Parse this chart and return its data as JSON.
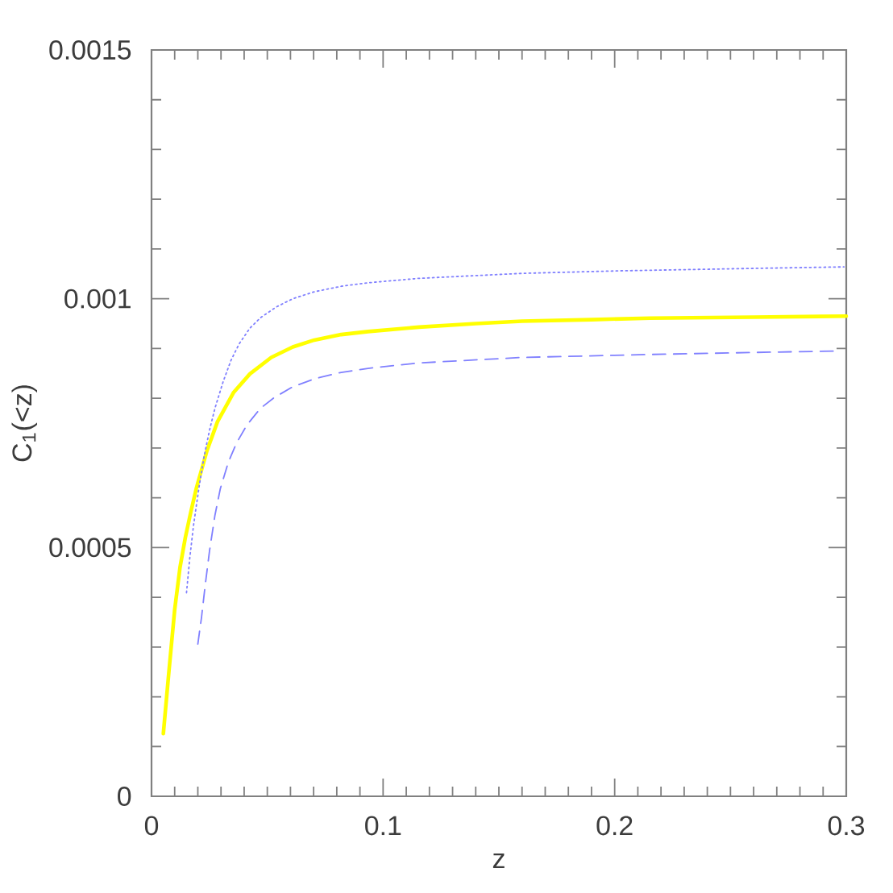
{
  "chart_data": {
    "type": "line",
    "xlabel": "z",
    "ylabel": "C$_{1}$(<z)",
    "xlim": [
      0,
      0.3
    ],
    "ylim": [
      0,
      0.0015
    ],
    "xticks": [
      0,
      {
        "value": 0.01,
        "label": null
      },
      {
        "value": 0.02,
        "label": null
      },
      {
        "value": 0.03,
        "label": null
      },
      {
        "value": 0.04,
        "label": null
      },
      {
        "value": 0.05,
        "label": null
      },
      {
        "value": 0.06,
        "label": null
      },
      {
        "value": 0.07,
        "label": null
      },
      {
        "value": 0.08,
        "label": null
      },
      {
        "value": 0.09,
        "label": null
      },
      0.1,
      {
        "value": 0.11,
        "label": null
      },
      {
        "value": 0.12,
        "label": null
      },
      {
        "value": 0.13,
        "label": null
      },
      {
        "value": 0.14,
        "label": null
      },
      {
        "value": 0.15,
        "label": null
      },
      {
        "value": 0.16,
        "label": null
      },
      {
        "value": 0.17,
        "label": null
      },
      {
        "value": 0.18,
        "label": null
      },
      {
        "value": 0.19,
        "label": null
      },
      0.2,
      {
        "value": 0.21,
        "label": null
      },
      {
        "value": 0.22,
        "label": null
      },
      {
        "value": 0.23,
        "label": null
      },
      {
        "value": 0.24,
        "label": null
      },
      {
        "value": 0.25,
        "label": null
      },
      {
        "value": 0.26,
        "label": null
      },
      {
        "value": 0.27,
        "label": null
      },
      {
        "value": 0.28,
        "label": null
      },
      {
        "value": 0.29,
        "label": null
      },
      0.3
    ],
    "yticks": [
      0,
      {
        "value": 0.0001,
        "label": null
      },
      {
        "value": 0.0002,
        "label": null
      },
      {
        "value": 0.0003,
        "label": null
      },
      {
        "value": 0.0004,
        "label": null
      },
      0.0005,
      {
        "value": 0.0006,
        "label": null
      },
      {
        "value": 0.0007,
        "label": null
      },
      {
        "value": 0.0008,
        "label": null
      },
      {
        "value": 0.0009,
        "label": null
      },
      0.001,
      {
        "value": 0.0011,
        "label": null
      },
      {
        "value": 0.0012,
        "label": null
      },
      {
        "value": 0.0013,
        "label": null
      },
      {
        "value": 0.0014,
        "label": null
      },
      0.0015
    ],
    "series": [
      {
        "color": "#ffff00",
        "line_style": "solid",
        "x": [
          0.0051,
          0.0075,
          0.01,
          0.0123,
          0.0146,
          0.0169,
          0.0193,
          0.0239,
          0.0285,
          0.0355,
          0.0425,
          0.0517,
          0.061,
          0.0703,
          0.0819,
          0.0935,
          0.1155,
          0.14,
          0.16,
          0.19,
          0.2153,
          0.26,
          0.3
        ],
        "values": [
          0.000126,
          0.00025,
          0.000375,
          0.00046,
          0.00052,
          0.00057,
          0.000618,
          0.000694,
          0.000753,
          0.000812,
          0.000849,
          0.000882,
          0.000903,
          0.000917,
          0.000928,
          0.000934,
          0.000943,
          0.00095,
          0.000955,
          0.000958,
          0.000961,
          0.000963,
          0.000965
        ]
      },
      {
        "color": "#8080ff",
        "line_style": "dotted",
        "x": [
          0.0151,
          0.0165,
          0.0181,
          0.0204,
          0.0227,
          0.0251,
          0.0274,
          0.0309,
          0.0343,
          0.0378,
          0.0425,
          0.0471,
          0.0541,
          0.061,
          0.0703,
          0.0819,
          0.0935,
          0.1155,
          0.16,
          0.2012,
          0.26,
          0.299
        ],
        "values": [
          0.000409,
          0.000478,
          0.000543,
          0.000618,
          0.000683,
          0.000737,
          0.00078,
          0.000833,
          0.000876,
          0.000909,
          0.000941,
          0.000962,
          0.000984,
          0.001,
          0.001014,
          0.001025,
          0.001032,
          0.001041,
          0.001051,
          0.001056,
          0.001061,
          0.001064
        ]
      },
      {
        "color": "#8080ff",
        "line_style": "dashed",
        "x": [
          0.02,
          0.0216,
          0.0232,
          0.0251,
          0.0274,
          0.0297,
          0.0332,
          0.0367,
          0.0413,
          0.0471,
          0.0529,
          0.061,
          0.0703,
          0.0819,
          0.0935,
          0.1155,
          0.16,
          0.2153,
          0.26,
          0.2965
        ],
        "values": [
          0.000306,
          0.00036,
          0.000425,
          0.000495,
          0.000565,
          0.000618,
          0.000672,
          0.00071,
          0.000747,
          0.00078,
          0.000801,
          0.000823,
          0.000839,
          0.000852,
          0.00086,
          0.000871,
          0.000882,
          0.000888,
          0.000892,
          0.000895
        ]
      }
    ]
  }
}
